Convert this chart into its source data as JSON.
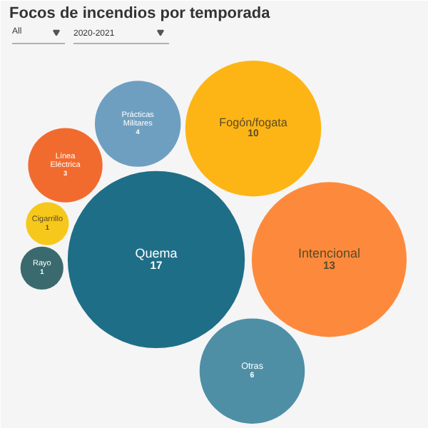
{
  "chart_data": {
    "type": "other",
    "title": "Focos de incendios por temporada",
    "annotations": [
      "All",
      "2020-2021"
    ],
    "categories": [
      "Quema",
      "Intencional",
      "Fogón/fogata",
      "Otras",
      "Prácticas Militares",
      "Línea Eléctrica",
      "Cigarrillo",
      "Rayo"
    ],
    "values": [
      17,
      13,
      10,
      6,
      4,
      3,
      1,
      1
    ],
    "colors": [
      "#1f6e87",
      "#fd8a3c",
      "#fdb515",
      "#4e8fa6",
      "#6f9fc0",
      "#f26b2e",
      "#f7c81c",
      "#3b6a6e"
    ],
    "data_labels": true
  }
}
